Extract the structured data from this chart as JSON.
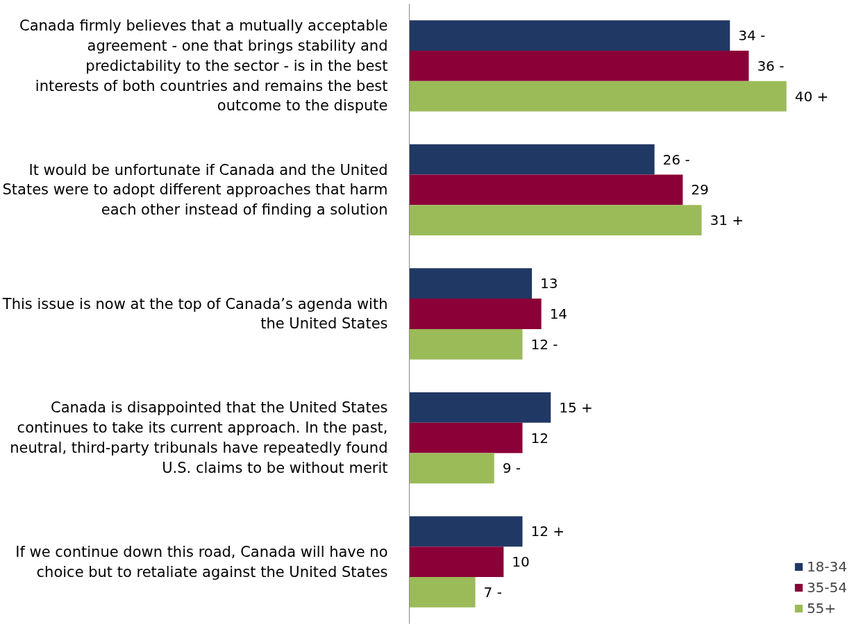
{
  "chart_data": {
    "type": "bar",
    "orientation": "horizontal",
    "categories": [
      "Canada firmly believes that a mutually acceptable agreement - one that brings stability and predictability to the sector - is in the best interests of both countries and remains the best outcome to the dispute",
      "It would be unfortunate if Canada and the United States were to adopt different approaches that harm each other instead of finding a solution",
      "This issue is now at the top of Canada’s agenda with the United States",
      "Canada is disappointed that the United States continues to take its current approach. In the past, neutral, third-party tribunals have repeatedly found U.S. claims to be without merit",
      "If we continue down this road, Canada will have no choice but to retaliate against the United States"
    ],
    "series": [
      {
        "name": "18-34",
        "color": "#203864",
        "values": [
          34,
          26,
          13,
          15,
          12
        ],
        "value_labels": [
          "34 -",
          "26 -",
          "13",
          "15 +",
          "12 +"
        ]
      },
      {
        "name": "35-54",
        "color": "#8b0037",
        "values": [
          36,
          29,
          14,
          12,
          10
        ],
        "value_labels": [
          "36 -",
          "29",
          "14",
          "12",
          "10"
        ]
      },
      {
        "name": "55+",
        "color": "#9bbb59",
        "values": [
          40,
          31,
          12,
          9,
          7
        ],
        "value_labels": [
          "40 +",
          "31 +",
          "12 -",
          "9 -",
          "7 -"
        ]
      }
    ],
    "tick_labels": "y",
    "legend": "bottom right"
  }
}
